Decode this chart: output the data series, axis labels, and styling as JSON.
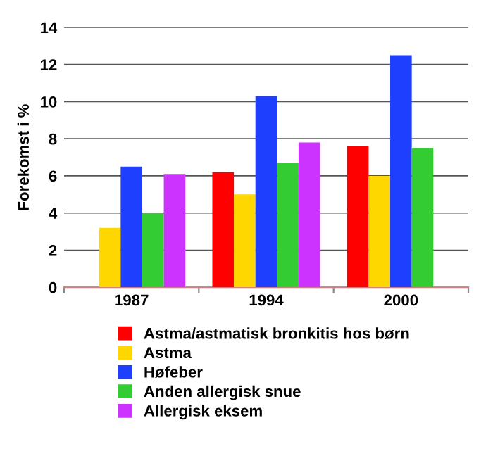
{
  "chart_data": {
    "type": "bar",
    "ylabel": "Forekomst i %",
    "categories": [
      "1987",
      "1994",
      "2000"
    ],
    "series": [
      {
        "name": "Astma/astmatisk bronkitis hos børn",
        "color": "#ff0000",
        "values": [
          null,
          6.2,
          7.6
        ]
      },
      {
        "name": "Astma",
        "color": "#ffd700",
        "values": [
          3.2,
          5.0,
          6.0
        ]
      },
      {
        "name": "Høfeber",
        "color": "#1f3fff",
        "values": [
          6.5,
          10.3,
          12.5
        ]
      },
      {
        "name": "Anden allergisk snue",
        "color": "#33cc33",
        "values": [
          4.0,
          6.7,
          7.5
        ]
      },
      {
        "name": "Allergisk eksem",
        "color": "#cc33ff",
        "values": [
          6.1,
          7.8,
          null
        ]
      }
    ],
    "ylim": [
      0,
      14
    ],
    "yticks": [
      0,
      2,
      4,
      6,
      8,
      10,
      12,
      14
    ],
    "grid": "y",
    "legend": "bottom"
  }
}
